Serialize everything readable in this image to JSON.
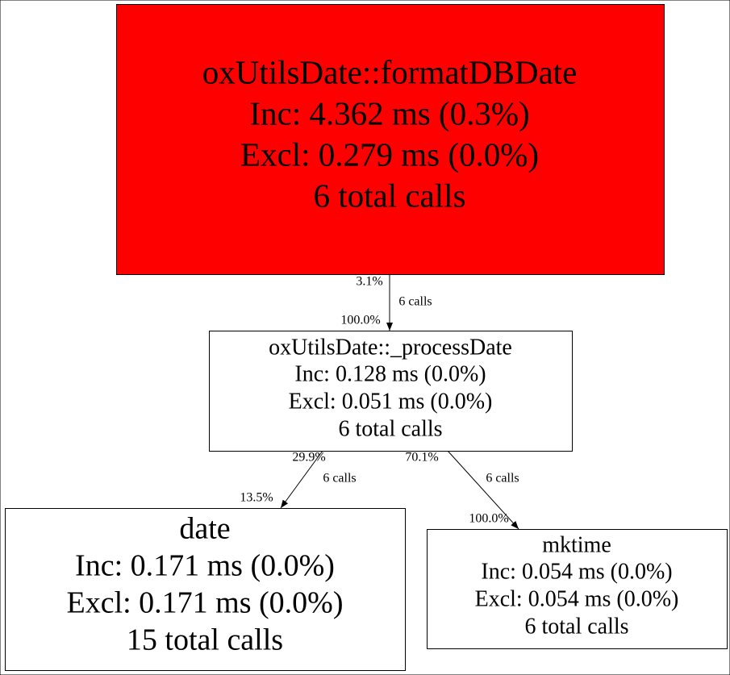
{
  "nodes": [
    {
      "lines": [
        "oxUtilsDate::formatDBDate",
        "Inc: 4.362 ms (0.3%)",
        "Excl: 0.279 ms (0.0%)",
        "6 total calls"
      ]
    },
    {
      "lines": [
        "oxUtilsDate::_processDate",
        "Inc: 0.128 ms (0.0%)",
        "Excl: 0.051 ms (0.0%)",
        "6 total calls"
      ]
    },
    {
      "lines": [
        "date",
        "Inc: 0.171 ms (0.0%)",
        "Excl: 0.171 ms (0.0%)",
        "15 total calls"
      ]
    },
    {
      "lines": [
        "mktime",
        "Inc: 0.054 ms (0.0%)",
        "Excl: 0.054 ms (0.0%)",
        "6 total calls"
      ]
    }
  ],
  "edges": [
    {
      "tail_label": "3.1%",
      "label": "6 calls",
      "head_label": "100.0%"
    },
    {
      "tail_label": "29.9%",
      "label": "6 calls",
      "head_label": "13.5%"
    },
    {
      "tail_label": "70.1%",
      "label": "6 calls",
      "head_label": "100.0%"
    }
  ]
}
